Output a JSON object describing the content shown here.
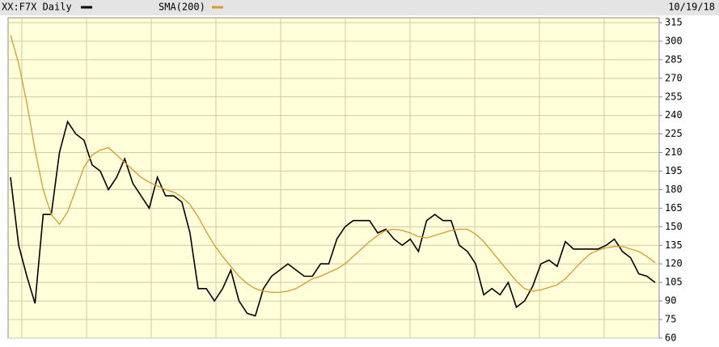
{
  "chart_data": {
    "type": "line",
    "title": "XX:F7X Daily",
    "date": "10/19/18",
    "ylim": [
      60,
      315
    ],
    "yticks": [
      60,
      75,
      90,
      105,
      120,
      135,
      150,
      165,
      180,
      195,
      210,
      225,
      240,
      255,
      270,
      285,
      300,
      315
    ],
    "grid": true,
    "series": [
      {
        "name": "XX:F7X Daily",
        "color": "#000000",
        "values": [
          190,
          135,
          110,
          88,
          160,
          160,
          210,
          235,
          225,
          220,
          200,
          195,
          180,
          190,
          205,
          185,
          175,
          165,
          190,
          175,
          175,
          170,
          145,
          100,
          100,
          90,
          100,
          115,
          90,
          80,
          78,
          100,
          110,
          115,
          120,
          115,
          110,
          110,
          120,
          120,
          140,
          150,
          155,
          155,
          155,
          145,
          148,
          140,
          135,
          140,
          130,
          155,
          160,
          155,
          155,
          135,
          130,
          120,
          95,
          100,
          95,
          105,
          85,
          90,
          102,
          120,
          123,
          118,
          138,
          132,
          132,
          132,
          132,
          135,
          140,
          130,
          125,
          112,
          110,
          105
        ]
      },
      {
        "name": "SMA(200)",
        "color": "#d89a2a",
        "values": [
          305,
          282,
          250,
          212,
          180,
          160,
          152,
          162,
          180,
          198,
          208,
          212,
          214,
          208,
          202,
          196,
          190,
          186,
          183,
          180,
          178,
          174,
          168,
          158,
          146,
          135,
          126,
          118,
          110,
          104,
          100,
          98,
          97,
          97,
          98,
          100,
          104,
          108,
          110,
          113,
          116,
          120,
          126,
          132,
          138,
          143,
          147,
          148,
          147,
          145,
          142,
          141,
          143,
          145,
          147,
          148,
          148,
          144,
          138,
          130,
          122,
          114,
          106,
          100,
          98,
          99,
          101,
          103,
          108,
          115,
          122,
          128,
          131,
          133,
          134,
          134,
          132,
          130,
          126,
          121
        ]
      }
    ]
  }
}
